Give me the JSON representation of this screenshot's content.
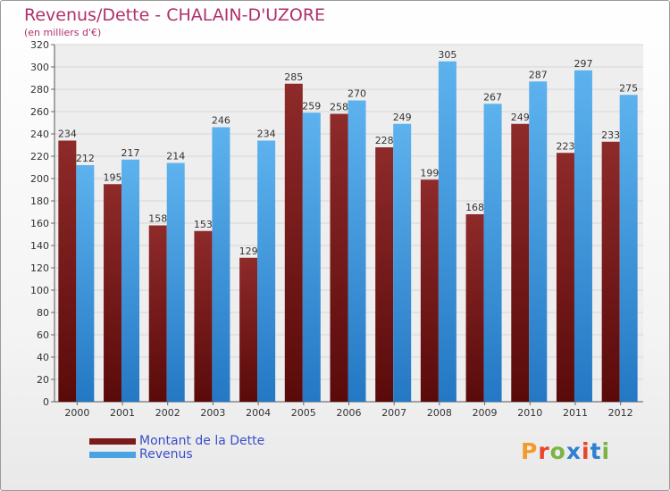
{
  "header": {
    "title": "Revenus/Dette - CHALAIN-D'UZORE",
    "subtitle": "(en milliers d'€)"
  },
  "legend": {
    "items": [
      {
        "label": "Montant de la Dette",
        "color": "#7a1a1a"
      },
      {
        "label": "Revenus",
        "color": "#4aa3e3"
      }
    ]
  },
  "logo": {
    "text": "Proxiti",
    "colors": [
      "#f29b2b",
      "#e8452a",
      "#7cb342",
      "#2f80d1",
      "#e8452a",
      "#2f80d1",
      "#7cb342"
    ]
  },
  "chart_data": {
    "type": "bar",
    "categories": [
      "2000",
      "2001",
      "2002",
      "2003",
      "2004",
      "2005",
      "2006",
      "2007",
      "2008",
      "2009",
      "2010",
      "2011",
      "2012"
    ],
    "series": [
      {
        "name": "Montant de la Dette",
        "color": "#7a1a1a",
        "values": [
          234,
          195,
          158,
          153,
          129,
          285,
          258,
          228,
          199,
          168,
          249,
          223,
          233
        ]
      },
      {
        "name": "Revenus",
        "color": "#4aa3e3",
        "values": [
          212,
          217,
          214,
          246,
          234,
          259,
          270,
          249,
          305,
          267,
          287,
          297,
          275
        ]
      }
    ],
    "ylim": [
      0,
      320
    ],
    "yticks": [
      0,
      20,
      40,
      60,
      80,
      100,
      120,
      140,
      160,
      180,
      200,
      220,
      240,
      260,
      280,
      300,
      320
    ],
    "grid": true,
    "legend": "bottom-left"
  }
}
